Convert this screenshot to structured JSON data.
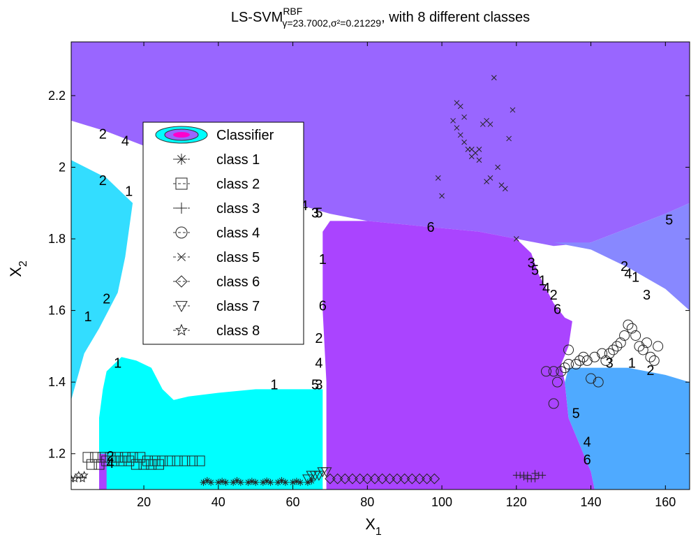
{
  "chart_data": {
    "type": "contour",
    "title_main": "LS-SVM",
    "title_sup": "RBF",
    "title_sub": "γ=23.7002,σ²=0.21229",
    "title_tail": ", with 8 different classes",
    "xlabel_main": "X",
    "xlabel_sub": "1",
    "ylabel_main": "X",
    "ylabel_sub": "2",
    "xlim": [
      0.5,
      166.5
    ],
    "ylim": [
      1.1,
      2.35
    ],
    "xticks": [
      20,
      40,
      60,
      80,
      100,
      120,
      140,
      160
    ],
    "yticks": [
      1.2,
      1.4,
      1.6,
      1.8,
      2.0,
      2.2
    ],
    "xtick_labels": [
      "20",
      "40",
      "60",
      "80",
      "100",
      "120",
      "140",
      "160"
    ],
    "ytick_labels": [
      "1.2",
      "1.4",
      "1.6",
      "1.8",
      "2",
      "2.2"
    ],
    "region_colors": {
      "class5_top": "#9966ff",
      "class6_mid": "#aa44ff",
      "class1_cyan": "#00ffff",
      "class2_lightblue": "#33ddff",
      "class4_blue": "#4faaff",
      "classR_periwinkle": "#8888ff",
      "boundary": "#ffffff"
    },
    "legend": {
      "entries": [
        {
          "label": "Classifier",
          "marker": "contour"
        },
        {
          "label": "class 1",
          "marker": "asterisk"
        },
        {
          "label": "class 2",
          "marker": "square"
        },
        {
          "label": "class 3",
          "marker": "plus"
        },
        {
          "label": "class 4",
          "marker": "circle"
        },
        {
          "label": "class 5",
          "marker": "x"
        },
        {
          "label": "class 6",
          "marker": "diamond"
        },
        {
          "label": "class 7",
          "marker": "triangle"
        },
        {
          "label": "class 8",
          "marker": "star"
        }
      ],
      "placement": "top-left"
    },
    "series": [
      {
        "label": "class 1",
        "marker": "asterisk",
        "points": [
          [
            36,
            1.12
          ],
          [
            38,
            1.12
          ],
          [
            40,
            1.12
          ],
          [
            42,
            1.12
          ],
          [
            44,
            1.12
          ],
          [
            46,
            1.12
          ],
          [
            48,
            1.12
          ],
          [
            50,
            1.12
          ],
          [
            52,
            1.12
          ],
          [
            54,
            1.12
          ],
          [
            56,
            1.12
          ],
          [
            58,
            1.12
          ],
          [
            60,
            1.12
          ],
          [
            62,
            1.12
          ],
          [
            64,
            1.12
          ],
          [
            37,
            1.125
          ],
          [
            41,
            1.123
          ],
          [
            45,
            1.125
          ],
          [
            49,
            1.123
          ],
          [
            53,
            1.124
          ],
          [
            57,
            1.125
          ],
          [
            61,
            1.123
          ],
          [
            65,
            1.124
          ]
        ]
      },
      {
        "label": "class 2",
        "marker": "square",
        "points": [
          [
            5,
            1.19
          ],
          [
            7,
            1.19
          ],
          [
            9,
            1.19
          ],
          [
            11,
            1.19
          ],
          [
            13,
            1.19
          ],
          [
            15,
            1.19
          ],
          [
            17,
            1.19
          ],
          [
            19,
            1.19
          ],
          [
            21,
            1.18
          ],
          [
            23,
            1.18
          ],
          [
            25,
            1.18
          ],
          [
            27,
            1.18
          ],
          [
            29,
            1.18
          ],
          [
            31,
            1.18
          ],
          [
            33,
            1.18
          ],
          [
            35,
            1.18
          ],
          [
            6,
            1.17
          ],
          [
            8,
            1.17
          ],
          [
            10,
            1.18
          ],
          [
            12,
            1.18
          ],
          [
            14,
            1.18
          ],
          [
            16,
            1.18
          ],
          [
            18,
            1.17
          ],
          [
            20,
            1.17
          ],
          [
            22,
            1.17
          ],
          [
            24,
            1.17
          ]
        ]
      },
      {
        "label": "class 3",
        "marker": "plus",
        "points": [
          [
            120,
            1.14
          ],
          [
            121,
            1.14
          ],
          [
            122,
            1.14
          ],
          [
            123,
            1.13
          ],
          [
            124,
            1.13
          ],
          [
            125,
            1.13
          ],
          [
            126,
            1.14
          ],
          [
            127,
            1.14
          ],
          [
            125,
            1.145
          ],
          [
            123,
            1.14
          ],
          [
            122,
            1.135
          ]
        ]
      },
      {
        "label": "class 4",
        "marker": "circle",
        "points": [
          [
            128,
            1.43
          ],
          [
            130,
            1.43
          ],
          [
            131,
            1.4
          ],
          [
            132,
            1.43
          ],
          [
            133,
            1.44
          ],
          [
            134,
            1.49
          ],
          [
            134,
            1.45
          ],
          [
            136,
            1.45
          ],
          [
            137,
            1.46
          ],
          [
            138,
            1.47
          ],
          [
            139,
            1.46
          ],
          [
            140,
            1.41
          ],
          [
            141,
            1.47
          ],
          [
            142,
            1.4
          ],
          [
            143,
            1.48
          ],
          [
            144,
            1.46
          ],
          [
            145,
            1.48
          ],
          [
            146,
            1.49
          ],
          [
            147,
            1.5
          ],
          [
            148,
            1.51
          ],
          [
            149,
            1.53
          ],
          [
            150,
            1.56
          ],
          [
            151,
            1.55
          ],
          [
            152,
            1.53
          ],
          [
            153,
            1.5
          ],
          [
            154,
            1.49
          ],
          [
            155,
            1.51
          ],
          [
            156,
            1.47
          ],
          [
            157,
            1.46
          ],
          [
            158,
            1.5
          ],
          [
            130,
            1.34
          ]
        ]
      },
      {
        "label": "class 5",
        "marker": "x",
        "points": [
          [
            104,
            2.18
          ],
          [
            105,
            2.17
          ],
          [
            103,
            2.13
          ],
          [
            106,
            2.14
          ],
          [
            104,
            2.11
          ],
          [
            105,
            2.09
          ],
          [
            106,
            2.07
          ],
          [
            107,
            2.05
          ],
          [
            108,
            2.05
          ],
          [
            109,
            2.04
          ],
          [
            110,
            2.05
          ],
          [
            110,
            2.02
          ],
          [
            111,
            2.12
          ],
          [
            112,
            2.13
          ],
          [
            113,
            2.12
          ],
          [
            114,
            2.25
          ],
          [
            115,
            2.0
          ],
          [
            116,
            1.95
          ],
          [
            117,
            1.94
          ],
          [
            118,
            2.08
          ],
          [
            119,
            2.16
          ],
          [
            99,
            1.97
          ],
          [
            100,
            1.92
          ],
          [
            113,
            1.97
          ],
          [
            120,
            1.8
          ],
          [
            108,
            2.03
          ],
          [
            112,
            1.96
          ]
        ]
      },
      {
        "label": "class 6",
        "marker": "diamond",
        "points": [
          [
            70,
            1.13
          ],
          [
            72,
            1.13
          ],
          [
            74,
            1.13
          ],
          [
            76,
            1.13
          ],
          [
            78,
            1.13
          ],
          [
            80,
            1.13
          ],
          [
            82,
            1.13
          ],
          [
            84,
            1.13
          ],
          [
            86,
            1.13
          ],
          [
            88,
            1.13
          ],
          [
            90,
            1.13
          ],
          [
            92,
            1.13
          ],
          [
            94,
            1.13
          ],
          [
            96,
            1.13
          ],
          [
            98,
            1.13
          ]
        ]
      },
      {
        "label": "class 7",
        "marker": "triangle",
        "points": [
          [
            64,
            1.13
          ],
          [
            65,
            1.14
          ],
          [
            66,
            1.14
          ],
          [
            67,
            1.14
          ],
          [
            68,
            1.15
          ],
          [
            69,
            1.15
          ]
        ]
      },
      {
        "label": "class 8",
        "marker": "star",
        "points": [
          [
            0.5,
            1.13
          ],
          [
            1.5,
            1.13
          ],
          [
            2.5,
            1.14
          ],
          [
            3.5,
            1.13
          ],
          [
            4,
            1.14
          ]
        ]
      }
    ],
    "contour_labels": [
      {
        "text": "2",
        "x": 9,
        "y": 2.08
      },
      {
        "text": "4",
        "x": 15,
        "y": 2.06
      },
      {
        "text": "2",
        "x": 9,
        "y": 1.95
      },
      {
        "text": "1",
        "x": 16,
        "y": 1.92
      },
      {
        "text": "1",
        "x": 5,
        "y": 1.57
      },
      {
        "text": "2",
        "x": 10,
        "y": 1.62
      },
      {
        "text": "1",
        "x": 13,
        "y": 1.44
      },
      {
        "text": "1",
        "x": 55,
        "y": 1.38
      },
      {
        "text": "4",
        "x": 63,
        "y": 1.88
      },
      {
        "text": "3",
        "x": 66,
        "y": 1.86
      },
      {
        "text": "5",
        "x": 67,
        "y": 1.86
      },
      {
        "text": "6",
        "x": 97,
        "y": 1.82
      },
      {
        "text": "1",
        "x": 68,
        "y": 1.73
      },
      {
        "text": "6",
        "x": 68,
        "y": 1.6
      },
      {
        "text": "2",
        "x": 67,
        "y": 1.51
      },
      {
        "text": "4",
        "x": 67,
        "y": 1.44
      },
      {
        "text": "5",
        "x": 66,
        "y": 1.38
      },
      {
        "text": "3",
        "x": 67,
        "y": 1.38
      },
      {
        "text": "4",
        "x": 11,
        "y": 1.16
      },
      {
        "text": "2",
        "x": 11,
        "y": 1.18
      },
      {
        "text": "3",
        "x": 124,
        "y": 1.72
      },
      {
        "text": "5",
        "x": 125,
        "y": 1.7
      },
      {
        "text": "1",
        "x": 127,
        "y": 1.67
      },
      {
        "text": "4",
        "x": 128,
        "y": 1.65
      },
      {
        "text": "2",
        "x": 130,
        "y": 1.63
      },
      {
        "text": "6",
        "x": 131,
        "y": 1.59
      },
      {
        "text": "5",
        "x": 161,
        "y": 1.84
      },
      {
        "text": "2",
        "x": 149,
        "y": 1.71
      },
      {
        "text": "4",
        "x": 150,
        "y": 1.69
      },
      {
        "text": "1",
        "x": 152,
        "y": 1.68
      },
      {
        "text": "3",
        "x": 155,
        "y": 1.63
      },
      {
        "text": "3",
        "x": 145,
        "y": 1.44
      },
      {
        "text": "1",
        "x": 151,
        "y": 1.44
      },
      {
        "text": "2",
        "x": 156,
        "y": 1.42
      },
      {
        "text": "5",
        "x": 136,
        "y": 1.3
      },
      {
        "text": "4",
        "x": 139,
        "y": 1.22
      },
      {
        "text": "6",
        "x": 139,
        "y": 1.17
      }
    ]
  }
}
